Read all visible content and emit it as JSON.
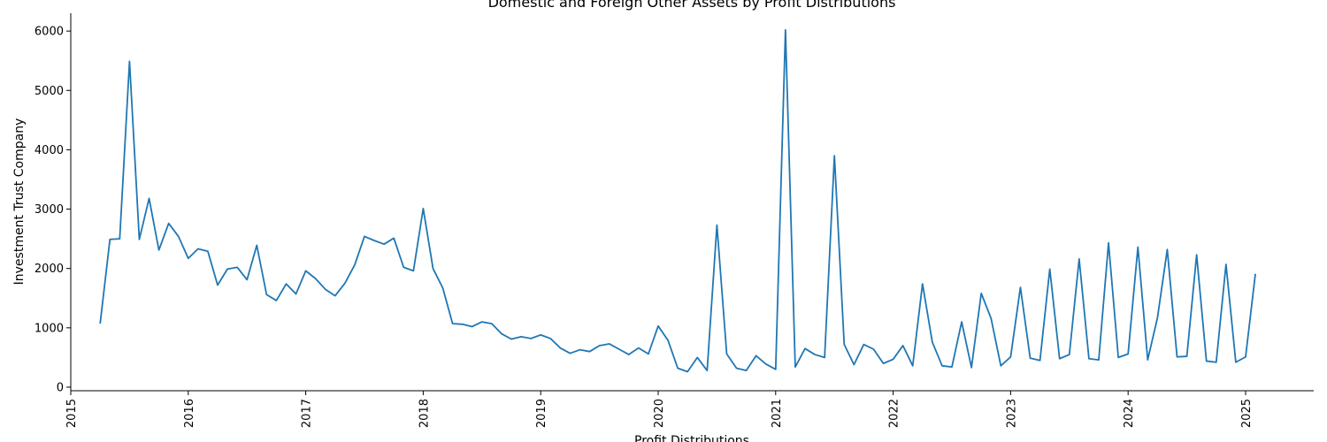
{
  "chart_data": {
    "type": "line",
    "title": "Domestic and Foreign Other Assets by Profit Distributions",
    "xlabel": "Profit Distributions",
    "ylabel": "Investment Trust Company",
    "xlim": [
      2015.0,
      2025.58
    ],
    "ylim": [
      -60,
      6300
    ],
    "x_ticks": [
      2015,
      2016,
      2017,
      2018,
      2019,
      2020,
      2021,
      2022,
      2023,
      2024,
      2025
    ],
    "x_tick_labels": [
      "2015",
      "2016",
      "2017",
      "2018",
      "2019",
      "2020",
      "2021",
      "2022",
      "2023",
      "2024",
      "2025"
    ],
    "y_ticks": [
      0,
      1000,
      2000,
      3000,
      4000,
      5000,
      6000
    ],
    "y_tick_labels": [
      "0",
      "1000",
      "2000",
      "3000",
      "4000",
      "5000",
      "6000"
    ],
    "grid": false,
    "line_color": "#1f77b4",
    "series": [
      {
        "x": [
          "2015-04",
          "2015-05",
          "2015-06",
          "2015-07",
          "2015-08",
          "2015-09",
          "2015-10",
          "2015-11",
          "2015-12",
          "2016-01",
          "2016-02",
          "2016-03",
          "2016-04",
          "2016-05",
          "2016-06",
          "2016-07",
          "2016-08",
          "2016-09",
          "2016-10",
          "2016-11",
          "2016-12",
          "2017-01",
          "2017-02",
          "2017-03",
          "2017-04",
          "2017-05",
          "2017-06",
          "2017-07",
          "2017-08",
          "2017-09",
          "2017-10",
          "2017-11",
          "2017-12",
          "2018-01",
          "2018-02",
          "2018-03",
          "2018-04",
          "2018-05",
          "2018-06",
          "2018-07",
          "2018-08",
          "2018-09",
          "2018-10",
          "2018-11",
          "2018-12",
          "2019-01",
          "2019-02",
          "2019-03",
          "2019-04",
          "2019-05",
          "2019-06",
          "2019-07",
          "2019-08",
          "2019-09",
          "2019-10",
          "2019-11",
          "2019-12",
          "2020-01",
          "2020-02",
          "2020-03",
          "2020-04",
          "2020-05",
          "2020-06",
          "2020-07",
          "2020-08",
          "2020-09",
          "2020-10",
          "2020-11",
          "2020-12",
          "2021-01",
          "2021-02",
          "2021-03",
          "2021-04",
          "2021-05",
          "2021-06",
          "2021-07",
          "2021-08",
          "2021-09",
          "2021-10",
          "2021-11",
          "2021-12",
          "2022-01",
          "2022-02",
          "2022-03",
          "2022-04",
          "2022-05",
          "2022-06",
          "2022-07",
          "2022-08",
          "2022-09",
          "2022-10",
          "2022-11",
          "2022-12",
          "2023-01",
          "2023-02",
          "2023-03",
          "2023-04",
          "2023-05",
          "2023-06",
          "2023-07",
          "2023-08",
          "2023-09",
          "2023-10",
          "2023-11",
          "2023-12",
          "2024-01",
          "2024-02",
          "2024-03",
          "2024-04",
          "2024-05",
          "2024-06",
          "2024-07",
          "2024-08",
          "2024-09",
          "2024-10",
          "2024-11",
          "2024-12",
          "2025-01",
          "2025-02"
        ],
        "values": [
          1070,
          2490,
          2500,
          5490,
          2490,
          3180,
          2310,
          2760,
          2540,
          2170,
          2330,
          2290,
          1720,
          1990,
          2020,
          1810,
          2390,
          1560,
          1460,
          1740,
          1570,
          1960,
          1830,
          1650,
          1540,
          1750,
          2060,
          2540,
          2470,
          2410,
          2510,
          2020,
          1960,
          3010,
          2000,
          1670,
          1070,
          1060,
          1020,
          1100,
          1070,
          900,
          810,
          850,
          820,
          880,
          820,
          660,
          570,
          630,
          600,
          700,
          730,
          640,
          550,
          660,
          560,
          1030,
          790,
          320,
          260,
          500,
          280,
          2730,
          560,
          320,
          280,
          530,
          390,
          300,
          6020,
          340,
          650,
          550,
          500,
          3900,
          720,
          380,
          720,
          640,
          400,
          470,
          700,
          360,
          1740,
          760,
          360,
          340,
          1100,
          330,
          1580,
          1160,
          360,
          510,
          1680,
          490,
          450,
          1990,
          480,
          550,
          2160,
          480,
          460,
          2430,
          500,
          560,
          2360,
          460,
          1170,
          2320,
          510,
          520,
          2230,
          440,
          420,
          2070,
          420,
          510,
          1910
        ]
      }
    ]
  }
}
